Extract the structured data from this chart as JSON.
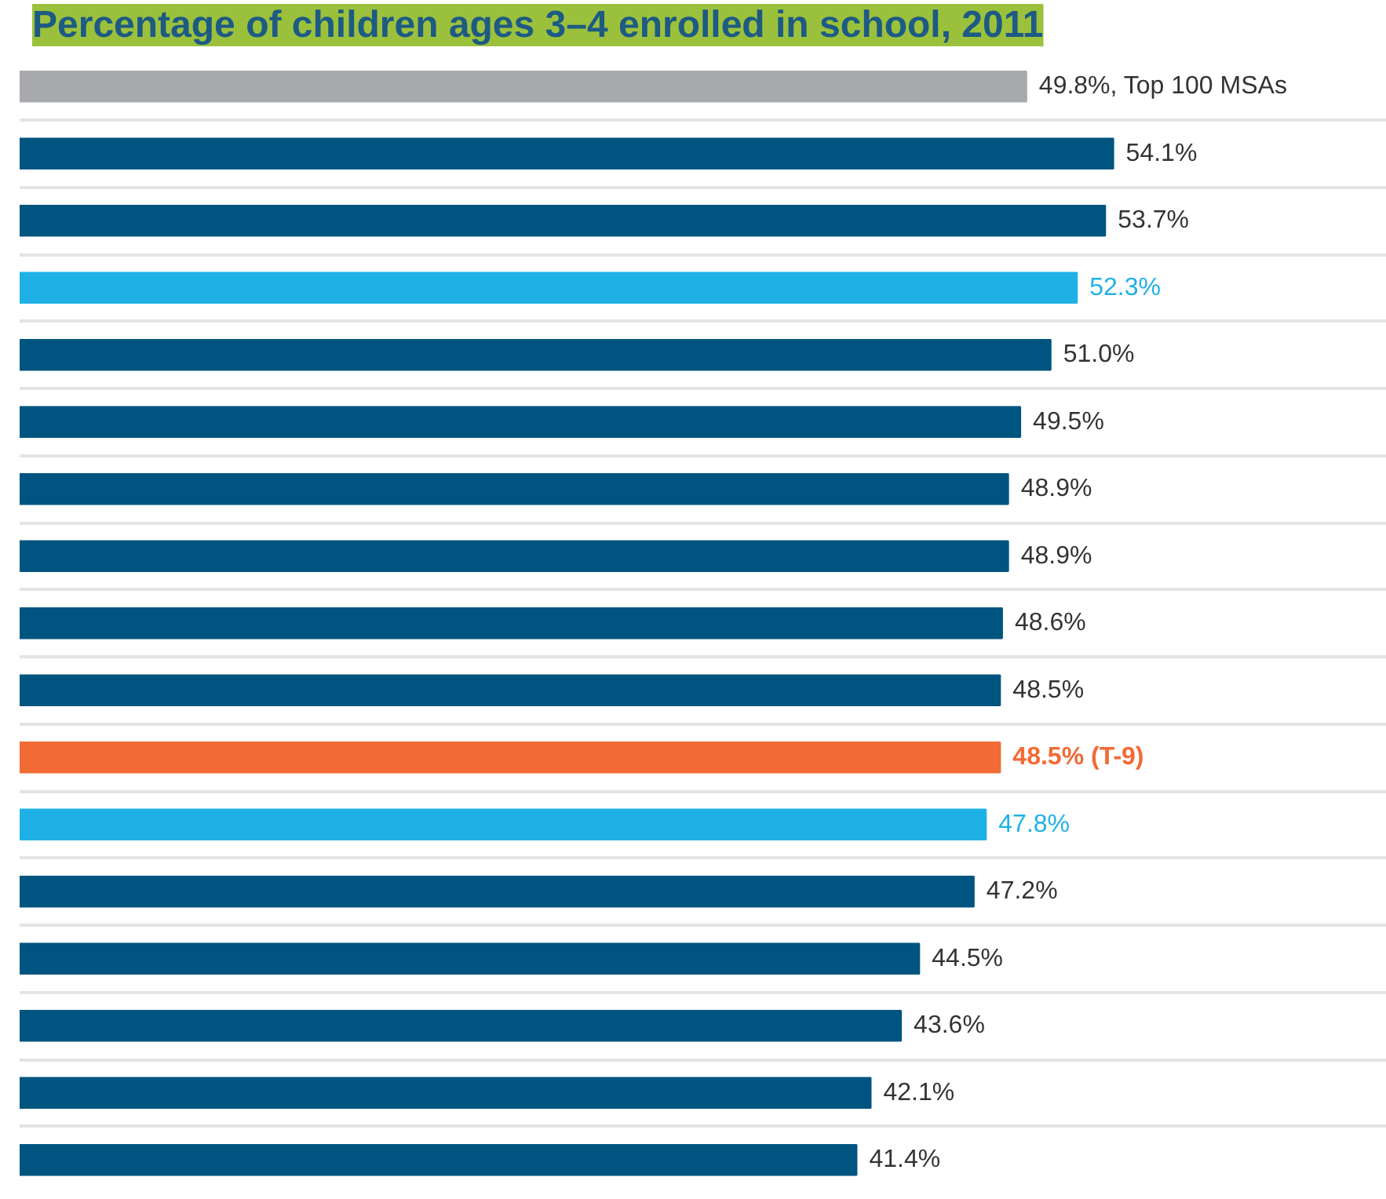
{
  "chart_data": {
    "type": "bar",
    "orientation": "horizontal",
    "title": "Percentage of children ages 3–4 enrolled in school, 2011",
    "categories": [
      null,
      null,
      null,
      null,
      null,
      null,
      null,
      null,
      null,
      null,
      null,
      null,
      null,
      null,
      null,
      null,
      null
    ],
    "values": [
      49.8,
      54.1,
      53.7,
      52.3,
      51.0,
      49.5,
      48.9,
      48.9,
      48.6,
      48.5,
      48.5,
      47.8,
      47.2,
      44.5,
      43.6,
      42.1,
      41.4
    ],
    "colors": [
      "#a7a9ac",
      "#005580",
      "#005580",
      "#1fb1e6",
      "#005580",
      "#005580",
      "#005580",
      "#005580",
      "#005580",
      "#005580",
      "#f26a36",
      "#1fb1e6",
      "#005580",
      "#005580",
      "#005580",
      "#005580",
      "#005580"
    ],
    "value_labels": [
      "49.8%,  Top 100 MSAs",
      "54.1%",
      "53.7%",
      "52.3%",
      "51.0%",
      "49.5%",
      "48.9%",
      "48.9%",
      "48.6%",
      "48.5%",
      "48.5%  (T-9)",
      "47.8%",
      "47.2%",
      "44.5%",
      "43.6%",
      "42.1%",
      "41.4%"
    ],
    "grid": "y"
  }
}
